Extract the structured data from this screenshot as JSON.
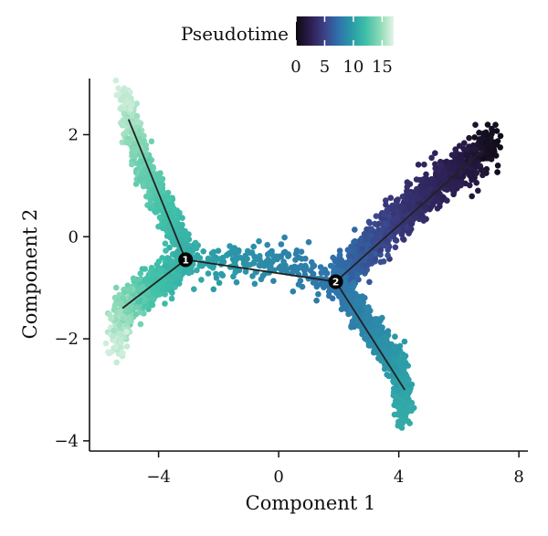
{
  "chart_data": {
    "type": "scatter",
    "title": "",
    "xlabel": "Component 1",
    "ylabel": "Component 2",
    "xlim": [
      -6.3,
      8.3
    ],
    "ylim": [
      -4.2,
      3.1
    ],
    "xticks": [
      {
        "value": -4,
        "label": "−4"
      },
      {
        "value": 0,
        "label": "0"
      },
      {
        "value": 4,
        "label": "4"
      },
      {
        "value": 8,
        "label": "8"
      }
    ],
    "yticks": [
      {
        "value": 2,
        "label": "2"
      },
      {
        "value": 0,
        "label": "0"
      },
      {
        "value": -2,
        "label": "−2"
      },
      {
        "value": -4,
        "label": "−4"
      }
    ],
    "grid": false,
    "legend": {
      "title": "Pseudotime",
      "placement": "top",
      "min": 0,
      "max": 17,
      "ticks": [
        {
          "value": 0,
          "label": "0"
        },
        {
          "value": 5,
          "label": "5"
        },
        {
          "value": 10,
          "label": "10"
        },
        {
          "value": 15,
          "label": "15"
        }
      ],
      "colors": [
        "#0d0a10",
        "#2b1d4e",
        "#3c3f85",
        "#2f6faa",
        "#2b9aa8",
        "#3fbfa8",
        "#8ad9b5",
        "#e3f4e6"
      ]
    },
    "trajectory": {
      "nodes": [
        {
          "id": "1",
          "x": -3.1,
          "y": -0.45
        },
        {
          "id": "2",
          "x": 1.9,
          "y": -0.88
        }
      ],
      "edges": [
        [
          {
            "x": -3.1,
            "y": -0.45
          },
          {
            "x": 1.9,
            "y": -0.88
          }
        ],
        [
          {
            "x": 1.9,
            "y": -0.88
          },
          {
            "x": 6.8,
            "y": 1.7
          }
        ],
        [
          {
            "x": 1.9,
            "y": -0.88
          },
          {
            "x": 4.2,
            "y": -3.0
          }
        ],
        [
          {
            "x": -3.1,
            "y": -0.45
          },
          {
            "x": -5.0,
            "y": 2.3
          }
        ],
        [
          {
            "x": -3.1,
            "y": -0.45
          },
          {
            "x": -5.2,
            "y": -1.4
          }
        ]
      ]
    },
    "branches": [
      {
        "branch": "root-upper-right",
        "n": 1300,
        "spread": 0.17,
        "path": [
          [
            7.1,
            1.85,
            0.3
          ],
          [
            6.3,
            1.45,
            2.0
          ],
          [
            4.2,
            0.5,
            4.0
          ],
          [
            2.0,
            -0.85,
            7.5
          ]
        ]
      },
      {
        "branch": "lower-right",
        "n": 900,
        "spread": 0.13,
        "path": [
          [
            1.95,
            -0.9,
            7.5
          ],
          [
            3.3,
            -2.0,
            9.0
          ],
          [
            4.1,
            -2.7,
            10.0
          ],
          [
            4.2,
            -3.5,
            10.8
          ]
        ]
      },
      {
        "branch": "middle-segment",
        "n": 230,
        "spread": 0.17,
        "path": [
          [
            1.9,
            -0.85,
            7.5
          ],
          [
            0.2,
            -0.55,
            8.5
          ],
          [
            -1.5,
            -0.55,
            9.5
          ],
          [
            -3.0,
            -0.5,
            10.8
          ]
        ]
      },
      {
        "branch": "upper-left",
        "n": 750,
        "spread": 0.13,
        "path": [
          [
            -3.0,
            -0.35,
            11.0
          ],
          [
            -3.6,
            0.3,
            12.0
          ],
          [
            -4.5,
            1.4,
            13.5
          ],
          [
            -5.2,
            2.8,
            16.5
          ]
        ]
      },
      {
        "branch": "lower-left",
        "n": 750,
        "spread": 0.15,
        "path": [
          [
            -3.1,
            -0.5,
            11.0
          ],
          [
            -4.3,
            -1.0,
            12.5
          ],
          [
            -5.2,
            -1.4,
            14.5
          ],
          [
            -5.35,
            -2.1,
            16.5
          ]
        ]
      }
    ]
  }
}
